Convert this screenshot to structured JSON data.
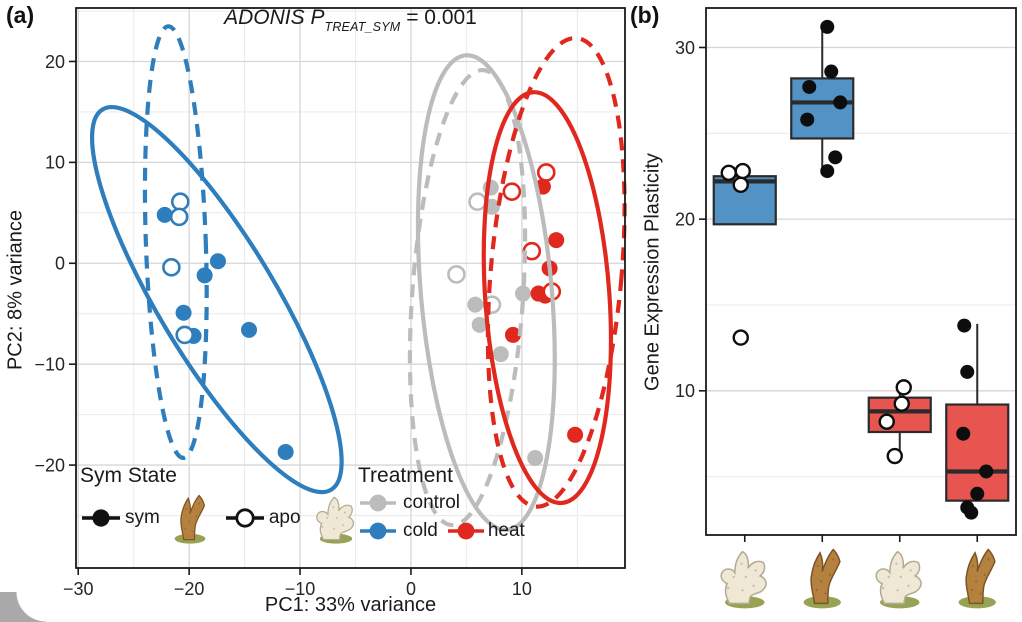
{
  "figure": {
    "panel_a_label": "(a)",
    "panel_b_label": "(b)"
  },
  "chart_data": [
    {
      "type": "scatter",
      "name": "PCA of gene expression",
      "title": {
        "main": "ADONIS P",
        "subscript": "TREAT_SYM",
        "equals": " = 0.001"
      },
      "x_axis": {
        "label": "PC1: 33% variance",
        "ticks": [
          -30,
          -20,
          -10,
          0,
          10
        ],
        "minor": [
          -25,
          -15,
          -5,
          5,
          15
        ],
        "range": [
          -30.2,
          19.3
        ],
        "grid": true
      },
      "y_axis": {
        "label": "PC2: 8% variance",
        "ticks": [
          20,
          10,
          0,
          -10,
          -20
        ],
        "minor": [
          25,
          15,
          5,
          -5,
          -15,
          -25
        ],
        "range": [
          -30.2,
          25.3
        ],
        "grid": true
      },
      "series": [
        {
          "name": "sym control",
          "treatment": "control",
          "sym_state": "sym",
          "color": "#bcbcbc",
          "filled": true,
          "points": [
            [
              7.2,
              7.5
            ],
            [
              7.3,
              5.6
            ],
            [
              5.8,
              -4.1
            ],
            [
              6.2,
              -6.1
            ],
            [
              8.1,
              -9.0
            ],
            [
              10.1,
              -3.0
            ],
            [
              11.2,
              -19.3
            ]
          ]
        },
        {
          "name": "apo control",
          "treatment": "control",
          "sym_state": "apo",
          "color": "#bcbcbc",
          "filled": false,
          "points": [
            [
              6.0,
              6.1
            ],
            [
              4.1,
              -1.1
            ],
            [
              7.3,
              -4.1
            ]
          ]
        },
        {
          "name": "sym cold",
          "treatment": "cold",
          "sym_state": "sym",
          "color": "#2e7ebd",
          "filled": true,
          "points": [
            [
              -22.2,
              4.8
            ],
            [
              -17.4,
              0.2
            ],
            [
              -18.6,
              -1.2
            ],
            [
              -20.5,
              -4.9
            ],
            [
              -19.6,
              -7.2
            ],
            [
              -14.6,
              -6.6
            ],
            [
              -11.3,
              -18.7
            ]
          ]
        },
        {
          "name": "apo cold",
          "treatment": "cold",
          "sym_state": "apo",
          "color": "#2e7ebd",
          "filled": false,
          "points": [
            [
              -20.8,
              6.1
            ],
            [
              -20.9,
              4.6
            ],
            [
              -21.6,
              -0.4
            ],
            [
              -20.4,
              -7.1
            ]
          ]
        },
        {
          "name": "sym heat",
          "treatment": "heat",
          "sym_state": "sym",
          "color": "#e0281e",
          "filled": true,
          "points": [
            [
              11.9,
              7.6
            ],
            [
              13.1,
              2.3
            ],
            [
              12.5,
              -0.5
            ],
            [
              11.5,
              -3.0
            ],
            [
              12.1,
              -3.2
            ],
            [
              9.2,
              -7.1
            ],
            [
              14.8,
              -17.0
            ]
          ]
        },
        {
          "name": "apo heat",
          "treatment": "heat",
          "sym_state": "apo",
          "color": "#e0281e",
          "filled": false,
          "points": [
            [
              12.2,
              9.0
            ],
            [
              9.1,
              7.1
            ],
            [
              10.9,
              1.2
            ],
            [
              12.7,
              -2.8
            ]
          ]
        }
      ],
      "ellipses": [
        {
          "name": "cold solid",
          "color": "#2e7ebd",
          "dashed": false,
          "cx": -17.5,
          "cy": -3.6,
          "rx": 20.0,
          "ry": 5.8,
          "angle": 59
        },
        {
          "name": "cold dashed",
          "color": "#2e7ebd",
          "dashed": true,
          "cx": -21.2,
          "cy": 2.1,
          "rx": 2.7,
          "ry": 21.4,
          "angle": -2
        },
        {
          "name": "control solid",
          "color": "#bcbcbc",
          "dashed": false,
          "cx": 6.8,
          "cy": -2.9,
          "rx": 5.9,
          "ry": 23.6,
          "angle": -5
        },
        {
          "name": "control dashed",
          "color": "#bcbcbc",
          "dashed": true,
          "cx": 5.1,
          "cy": -3.4,
          "rx": 5.0,
          "ry": 22.6,
          "angle": 4
        },
        {
          "name": "heat solid",
          "color": "#e0281e",
          "dashed": false,
          "cx": 12.3,
          "cy": -3.4,
          "rx": 5.6,
          "ry": 20.4,
          "angle": -4
        },
        {
          "name": "heat dashed",
          "color": "#e0281e",
          "dashed": true,
          "cx": 13.1,
          "cy": -0.9,
          "rx": 5.9,
          "ry": 23.3,
          "angle": 5
        }
      ],
      "legend": {
        "sym_state": {
          "title": "Sym State",
          "items": [
            {
              "label": "sym",
              "key": "filled",
              "icon": "coral-sym"
            },
            {
              "label": "apo",
              "key": "open",
              "icon": "coral-apo"
            }
          ]
        },
        "treatment": {
          "title": "Treatment",
          "items": [
            {
              "label": "control",
              "color": "#bcbcbc"
            },
            {
              "label": "cold",
              "color": "#2e7ebd"
            },
            {
              "label": "heat",
              "color": "#e0281e"
            }
          ]
        }
      }
    },
    {
      "type": "bar",
      "name": "Gene expression plasticity boxplots",
      "y_axis": {
        "label": "Gene Expression Plasticity",
        "ticks": [
          30,
          20,
          10
        ],
        "minor": [
          25,
          15,
          5
        ],
        "range": [
          1.6,
          32.3
        ],
        "grid": true
      },
      "groups": [
        {
          "name": "apo cold",
          "coral": "apo",
          "color": "#5292c5",
          "box": {
            "q1": 19.7,
            "median": 22.2,
            "q3": 22.5,
            "whisker_low": null,
            "whisker_high": null
          },
          "points": [
            {
              "v": 22.7,
              "dx": -16,
              "filled": false
            },
            {
              "v": 22.8,
              "dx": -2,
              "filled": false
            },
            {
              "v": 22.0,
              "dx": -4,
              "filled": false
            },
            {
              "v": 13.1,
              "dx": -4,
              "filled": false
            }
          ]
        },
        {
          "name": "sym cold",
          "coral": "sym",
          "color": "#5292c5",
          "box": {
            "q1": 24.7,
            "median": 26.8,
            "q3": 28.2,
            "whisker_low": 22.8,
            "whisker_high": 31.2
          },
          "points": [
            {
              "v": 31.2,
              "dx": 5,
              "filled": true
            },
            {
              "v": 28.6,
              "dx": 9,
              "filled": true
            },
            {
              "v": 27.7,
              "dx": -13,
              "filled": true
            },
            {
              "v": 26.8,
              "dx": 18,
              "filled": true
            },
            {
              "v": 25.8,
              "dx": -15,
              "filled": true
            },
            {
              "v": 23.6,
              "dx": 13,
              "filled": true
            },
            {
              "v": 22.8,
              "dx": 5,
              "filled": true
            }
          ]
        },
        {
          "name": "apo heat",
          "coral": "apo",
          "color": "#e8544f",
          "box": {
            "q1": 7.6,
            "median": 8.8,
            "q3": 9.6,
            "whisker_low": 6.2,
            "whisker_high": 10.3
          },
          "points": [
            {
              "v": 10.2,
              "dx": 4,
              "filled": false
            },
            {
              "v": 9.25,
              "dx": 2,
              "filled": false
            },
            {
              "v": 8.2,
              "dx": -13,
              "filled": false
            },
            {
              "v": 6.2,
              "dx": -5,
              "filled": false
            }
          ]
        },
        {
          "name": "sym heat",
          "coral": "sym",
          "color": "#e8544f",
          "box": {
            "q1": 3.6,
            "median": 5.3,
            "q3": 9.2,
            "whisker_low": null,
            "whisker_high": 13.9
          },
          "points": [
            {
              "v": 13.8,
              "dx": -13,
              "filled": true
            },
            {
              "v": 11.1,
              "dx": -10,
              "filled": true
            },
            {
              "v": 7.5,
              "dx": -14,
              "filled": true
            },
            {
              "v": 5.3,
              "dx": 9,
              "filled": true
            },
            {
              "v": 4.0,
              "dx": 0,
              "filled": true
            },
            {
              "v": 3.2,
              "dx": -10,
              "filled": true
            },
            {
              "v": 2.9,
              "dx": -6,
              "filled": true
            }
          ]
        }
      ]
    }
  ]
}
